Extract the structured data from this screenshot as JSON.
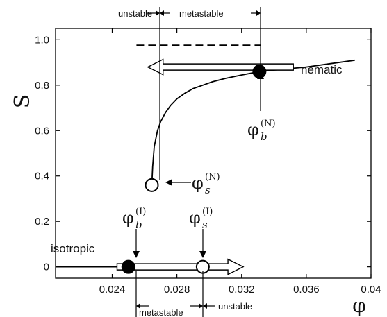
{
  "chart_data": {
    "type": "line",
    "title": "",
    "xlabel": "φ",
    "ylabel": "S",
    "xlim": [
      0.0205,
      0.04
    ],
    "ylim": [
      -0.05,
      1.05
    ],
    "xticks": [
      0.024,
      0.028,
      0.032,
      0.036,
      0.04
    ],
    "xtick_labels": [
      "0.024",
      "0.028",
      "0.032",
      "0.036",
      "0.04"
    ],
    "yticks": [
      0,
      0.2,
      0.4,
      0.6,
      0.8,
      1.0
    ],
    "ytick_labels": [
      "0",
      "0.2",
      "0.4",
      "0.6",
      "0.8",
      "1.0"
    ],
    "series": [
      {
        "name": "nematic",
        "x": [
          0.02645,
          0.0265,
          0.0266,
          0.0268,
          0.027,
          0.0273,
          0.0276,
          0.028,
          0.0285,
          0.029,
          0.0296,
          0.0302,
          0.031,
          0.032,
          0.0331,
          0.0345,
          0.036,
          0.0375,
          0.039
        ],
        "y": [
          0.36,
          0.44,
          0.53,
          0.6,
          0.64,
          0.68,
          0.71,
          0.74,
          0.765,
          0.785,
          0.8,
          0.815,
          0.83,
          0.845,
          0.86,
          0.87,
          0.88,
          0.895,
          0.91
        ]
      },
      {
        "name": "isotropic",
        "x": [
          0.0205,
          0.0296
        ],
        "y": [
          0,
          0
        ]
      }
    ],
    "reference_line": {
      "x": [
        0.0255,
        0.0332
      ],
      "y": 0.975,
      "style": "dashed"
    },
    "points": [
      {
        "x": 0.0331,
        "y": 0.86,
        "style": "filled",
        "label": "φ_b^(N)"
      },
      {
        "x": 0.02645,
        "y": 0.36,
        "style": "open",
        "label": "φ_s^(N)"
      },
      {
        "x": 0.025,
        "y": 0.0,
        "style": "filled",
        "label": "φ_b^(I)"
      },
      {
        "x": 0.0296,
        "y": 0.0,
        "style": "open",
        "label": "φ_s^(I)"
      }
    ],
    "arrows": [
      {
        "from_x": 0.0352,
        "to_x": 0.0262,
        "y": 0.88
      },
      {
        "from_x": 0.0243,
        "to_x": 0.0321,
        "y": 0.0
      }
    ],
    "grid": false,
    "legend": "none"
  },
  "labels": {
    "phase_nematic": "nematic",
    "phase_isotropic": "isotropic",
    "top_unstable": "unstable",
    "top_metastable": "metastable",
    "bottom_metastable": "metastable",
    "bottom_unstable": "unstable",
    "phi": "φ",
    "sub_b": "b",
    "sub_s": "s",
    "sup_N": "(N)",
    "sup_I": "(I)"
  },
  "colors": {
    "line": "#000000",
    "arrow_fill": "#ffffff",
    "text": "#111111"
  }
}
